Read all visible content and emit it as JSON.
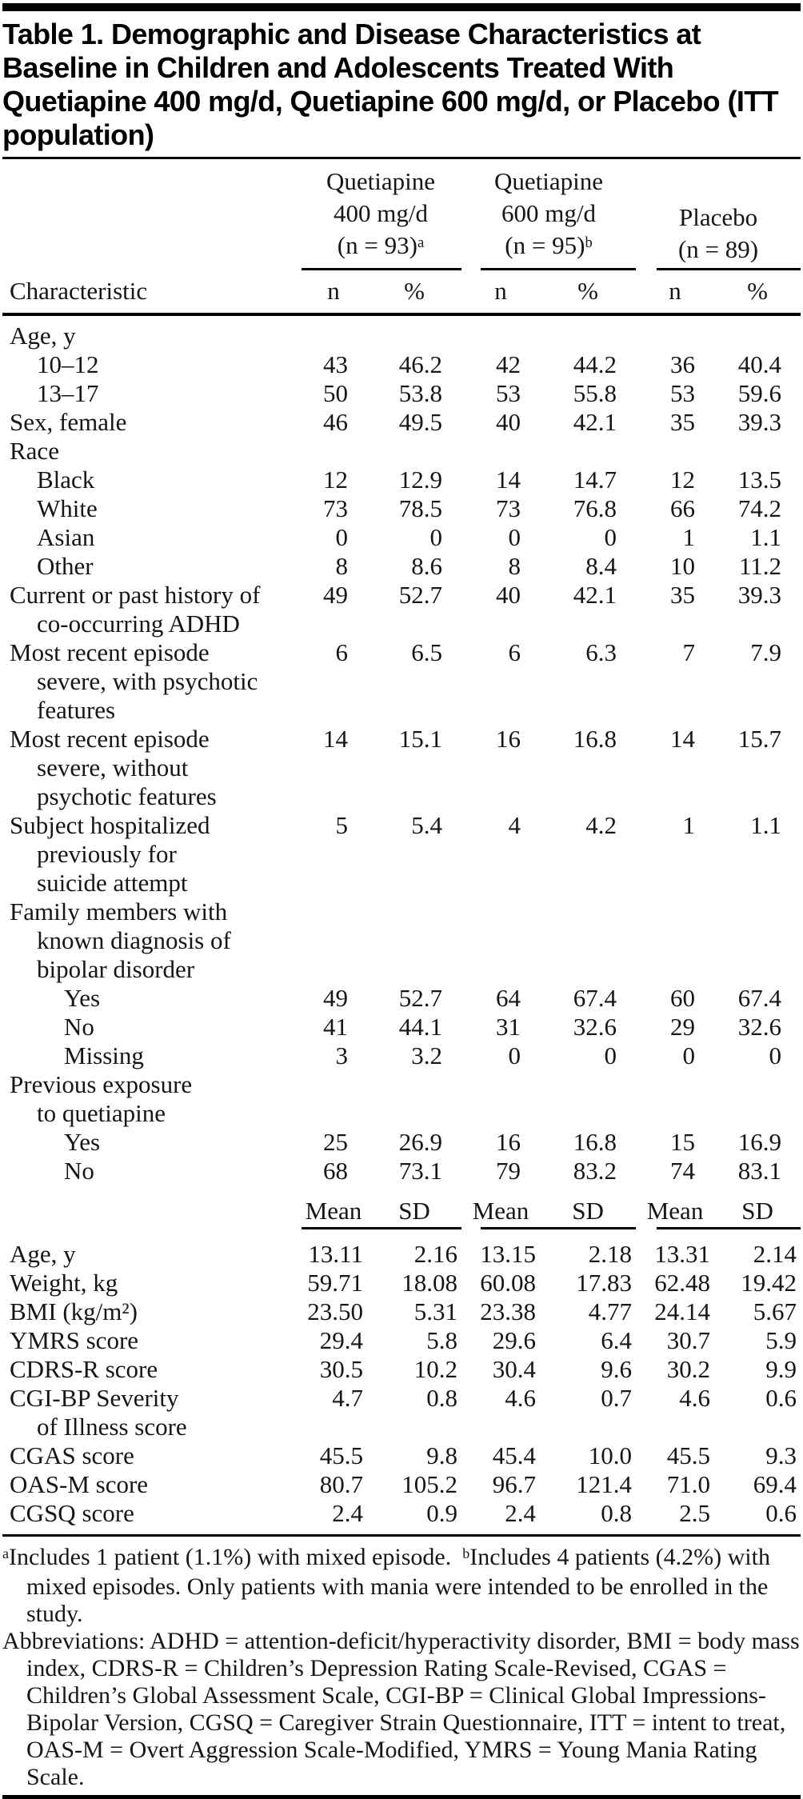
{
  "title": "Table 1. Demographic and Disease Characteristics at Baseline in Children and Adolescents Treated With Quetiapine 400 mg/d, Quetiapine 600 mg/d, or Placebo (ITT population)",
  "header": {
    "characteristic_label": "Characteristic",
    "groups": [
      {
        "lines": [
          "Quetiapine",
          "400 mg/d"
        ],
        "n_line": "(n = 93)",
        "sup": "a",
        "cols": [
          "n",
          "%"
        ]
      },
      {
        "lines": [
          "Quetiapine",
          "600 mg/d"
        ],
        "n_line": "(n = 95)",
        "sup": "b",
        "cols": [
          "n",
          "%"
        ]
      },
      {
        "lines": [
          "Placebo"
        ],
        "n_line": "(n = 89)",
        "sup": "",
        "cols": [
          "n",
          "%"
        ]
      }
    ]
  },
  "count_section": {
    "rows": [
      {
        "label_lines": [
          "Age, y"
        ],
        "indent": 0,
        "values": []
      },
      {
        "label_lines": [
          "10–12"
        ],
        "indent": 1,
        "values": [
          "43",
          "46.2",
          "42",
          "44.2",
          "36",
          "40.4"
        ]
      },
      {
        "label_lines": [
          "13–17"
        ],
        "indent": 1,
        "values": [
          "50",
          "53.8",
          "53",
          "55.8",
          "53",
          "59.6"
        ]
      },
      {
        "label_lines": [
          "Sex, female"
        ],
        "indent": 0,
        "values": [
          "46",
          "49.5",
          "40",
          "42.1",
          "35",
          "39.3"
        ]
      },
      {
        "label_lines": [
          "Race"
        ],
        "indent": 0,
        "values": []
      },
      {
        "label_lines": [
          "Black"
        ],
        "indent": 1,
        "values": [
          "12",
          "12.9",
          "14",
          "14.7",
          "12",
          "13.5"
        ]
      },
      {
        "label_lines": [
          "White"
        ],
        "indent": 1,
        "values": [
          "73",
          "78.5",
          "73",
          "76.8",
          "66",
          "74.2"
        ]
      },
      {
        "label_lines": [
          "Asian"
        ],
        "indent": 1,
        "values": [
          "0",
          "0",
          "0",
          "0",
          "1",
          "1.1"
        ]
      },
      {
        "label_lines": [
          "Other"
        ],
        "indent": 1,
        "values": [
          "8",
          "8.6",
          "8",
          "8.4",
          "10",
          "11.2"
        ]
      },
      {
        "label_lines": [
          "Current or past history of",
          "co-occurring ADHD"
        ],
        "indent": 0,
        "values": [
          "49",
          "52.7",
          "40",
          "42.1",
          "35",
          "39.3"
        ]
      },
      {
        "label_lines": [
          "Most recent episode",
          "severe, with psychotic",
          "features"
        ],
        "indent": 0,
        "values": [
          "6",
          "6.5",
          "6",
          "6.3",
          "7",
          "7.9"
        ]
      },
      {
        "label_lines": [
          "Most recent episode",
          "severe, without",
          "psychotic features"
        ],
        "indent": 0,
        "values": [
          "14",
          "15.1",
          "16",
          "16.8",
          "14",
          "15.7"
        ]
      },
      {
        "label_lines": [
          "Subject hospitalized",
          "previously for",
          "suicide attempt"
        ],
        "indent": 0,
        "values": [
          "5",
          "5.4",
          "4",
          "4.2",
          "1",
          "1.1"
        ]
      },
      {
        "label_lines": [
          "Family members with",
          "known diagnosis of",
          "bipolar disorder"
        ],
        "indent": 0,
        "values": []
      },
      {
        "label_lines": [
          "Yes"
        ],
        "indent": 2,
        "values": [
          "49",
          "52.7",
          "64",
          "67.4",
          "60",
          "67.4"
        ]
      },
      {
        "label_lines": [
          "No"
        ],
        "indent": 2,
        "values": [
          "41",
          "44.1",
          "31",
          "32.6",
          "29",
          "32.6"
        ]
      },
      {
        "label_lines": [
          "Missing"
        ],
        "indent": 2,
        "values": [
          "3",
          "3.2",
          "0",
          "0",
          "0",
          "0"
        ]
      },
      {
        "label_lines": [
          "Previous exposure",
          "to quetiapine"
        ],
        "indent": 0,
        "values": []
      },
      {
        "label_lines": [
          "Yes"
        ],
        "indent": 2,
        "values": [
          "25",
          "26.9",
          "16",
          "16.8",
          "15",
          "16.9"
        ]
      },
      {
        "label_lines": [
          "No"
        ],
        "indent": 2,
        "values": [
          "68",
          "73.1",
          "79",
          "83.2",
          "74",
          "83.1"
        ]
      }
    ]
  },
  "measure_section": {
    "col_labels": [
      "Mean",
      "SD"
    ],
    "rows": [
      {
        "label_lines": [
          "Age, y"
        ],
        "indent": 0,
        "values": [
          "13.11",
          "2.16",
          "13.15",
          "2.18",
          "13.31",
          "2.14"
        ]
      },
      {
        "label_lines": [
          "Weight, kg"
        ],
        "indent": 0,
        "values": [
          "59.71",
          "18.08",
          "60.08",
          "17.83",
          "62.48",
          "19.42"
        ]
      },
      {
        "label_lines": [
          "BMI (kg/m²)"
        ],
        "indent": 0,
        "values": [
          "23.50",
          "5.31",
          "23.38",
          "4.77",
          "24.14",
          "5.67"
        ]
      },
      {
        "label_lines": [
          "YMRS score"
        ],
        "indent": 0,
        "values": [
          "29.4",
          "5.8",
          "29.6",
          "6.4",
          "30.7",
          "5.9"
        ]
      },
      {
        "label_lines": [
          "CDRS-R score"
        ],
        "indent": 0,
        "values": [
          "30.5",
          "10.2",
          "30.4",
          "9.6",
          "30.2",
          "9.9"
        ]
      },
      {
        "label_lines": [
          "CGI-BP Severity",
          "of Illness score"
        ],
        "indent": 0,
        "values": [
          "4.7",
          "0.8",
          "4.6",
          "0.7",
          "4.6",
          "0.6"
        ]
      },
      {
        "label_lines": [
          "CGAS score"
        ],
        "indent": 0,
        "values": [
          "45.5",
          "9.8",
          "45.4",
          "10.0",
          "45.5",
          "9.3"
        ]
      },
      {
        "label_lines": [
          "OAS-M score"
        ],
        "indent": 0,
        "values": [
          "80.7",
          "105.2",
          "96.7",
          "121.4",
          "71.0",
          "69.4"
        ]
      },
      {
        "label_lines": [
          "CGSQ score"
        ],
        "indent": 0,
        "values": [
          "2.4",
          "0.9",
          "2.4",
          "0.8",
          "2.5",
          "0.6"
        ]
      }
    ]
  },
  "footnotes": {
    "a_sup": "a",
    "a_text": "Includes 1 patient (1.1%) with mixed episode.",
    "b_sup": "b",
    "b_text": "Includes 4 patients (4.2%) with mixed episodes. Only patients with mania were intended to be enrolled in the study.",
    "abbreviations": "Abbreviations: ADHD = attention-deficit/hyperactivity disorder, BMI = body mass index, CDRS-R = Children’s Depression Rating Scale-Revised, CGAS = Children’s Global Assessment Scale, CGI-BP = Clinical Global Impressions-Bipolar Version, CGSQ = Caregiver Strain Questionnaire, ITT = intent to treat, OAS-M = Overt Aggression Scale-Modified, YMRS = Young Mania Rating Scale."
  }
}
